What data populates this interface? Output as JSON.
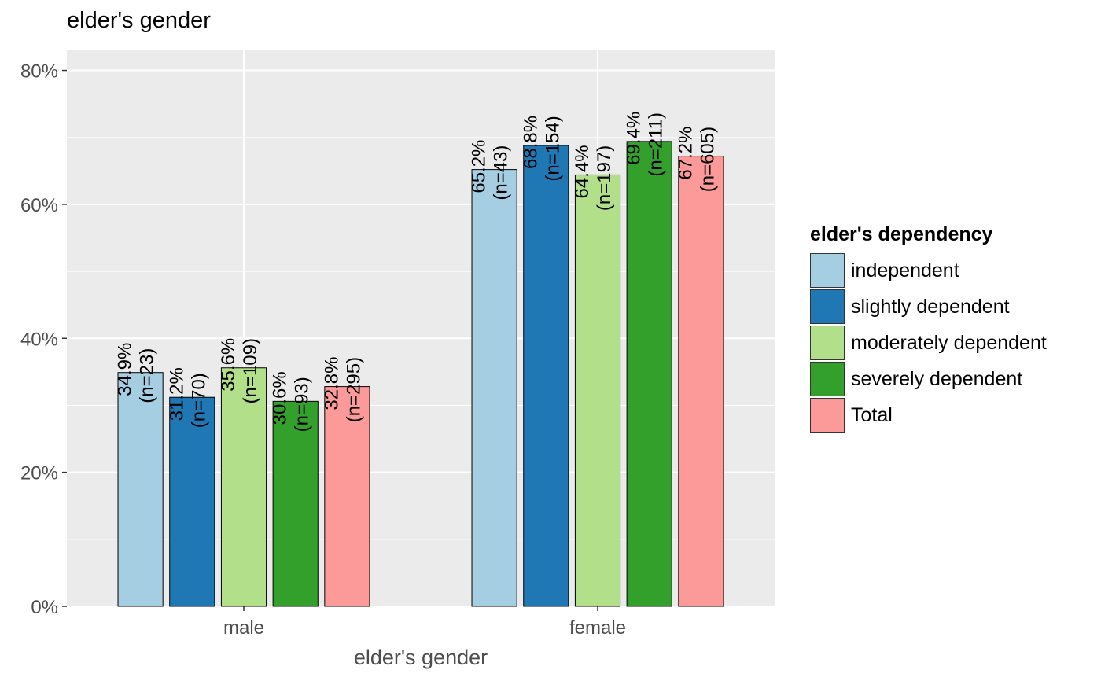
{
  "chart_data": {
    "type": "bar",
    "title": "elder's gender",
    "xlabel": "elder's gender",
    "ylabel": "",
    "ylim": [
      0,
      83
    ],
    "y_ticks": [
      0,
      20,
      40,
      60,
      80
    ],
    "y_tick_labels": [
      "0%",
      "20%",
      "40%",
      "60%",
      "80%"
    ],
    "categories": [
      "male",
      "female"
    ],
    "grid": true,
    "legend": {
      "title": "elder's dependency",
      "position": "right"
    },
    "series": [
      {
        "name": "independent",
        "color": "#A6CEE3",
        "values": [
          34.9,
          65.2
        ],
        "labels": [
          "34.9%",
          "65.2%"
        ],
        "counts": [
          "(n=23)",
          "(n=43)"
        ]
      },
      {
        "name": "slightly dependent",
        "color": "#1F78B4",
        "values": [
          31.2,
          68.8
        ],
        "labels": [
          "31.2%",
          "68.8%"
        ],
        "counts": [
          "(n=70)",
          "(n=154)"
        ]
      },
      {
        "name": "moderately dependent",
        "color": "#B2DF8A",
        "values": [
          35.6,
          64.4
        ],
        "labels": [
          "35.6%",
          "64.4%"
        ],
        "counts": [
          "(n=109)",
          "(n=197)"
        ]
      },
      {
        "name": "severely dependent",
        "color": "#33A02C",
        "values": [
          30.6,
          69.4
        ],
        "labels": [
          "30.6%",
          "69.4%"
        ],
        "counts": [
          "(n=93)",
          "(n=211)"
        ]
      },
      {
        "name": "Total",
        "color": "#FB9A99",
        "values": [
          32.8,
          67.2
        ],
        "labels": [
          "32.8%",
          "67.2%"
        ],
        "counts": [
          "(n=295)",
          "(n=605)"
        ]
      }
    ]
  }
}
